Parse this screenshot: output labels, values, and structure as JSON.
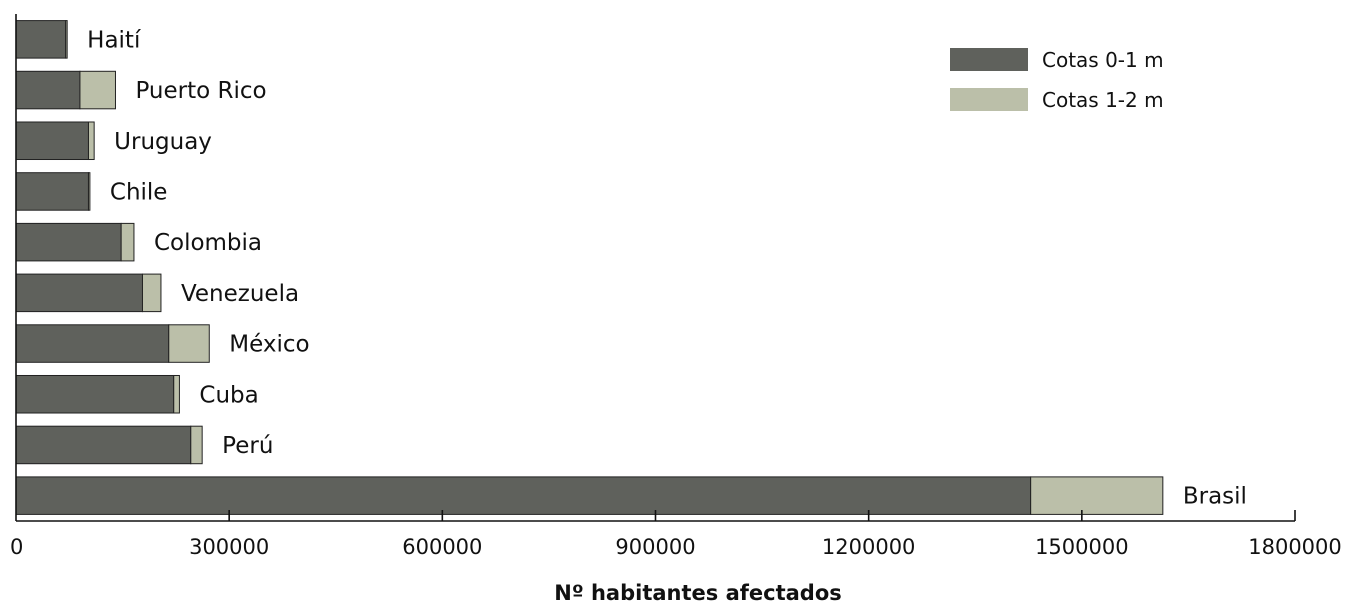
{
  "chart_data": {
    "type": "bar",
    "orientation": "horizontal",
    "stacked": true,
    "categories": [
      "Haití",
      "Puerto Rico",
      "Uruguay",
      "Chile",
      "Colombia",
      "Venezuela",
      "México",
      "Cuba",
      "Perú",
      "Brasil"
    ],
    "series": [
      {
        "name": "Cotas 0-1 m",
        "color": "#5f615c",
        "values": [
          70000,
          90000,
          102000,
          102000,
          148000,
          178000,
          215000,
          222000,
          246000,
          1428000
        ]
      },
      {
        "name": "Cotas 1-2 m",
        "color": "#bbbfa9",
        "values": [
          2000,
          50000,
          8000,
          2000,
          18000,
          26000,
          57000,
          8000,
          16000,
          186000
        ]
      }
    ],
    "x_ticks": [
      "0",
      "300000",
      "600000",
      "900000",
      "1200000",
      "1500000",
      "1800000"
    ],
    "xlim": [
      0,
      1800000
    ],
    "xlabel": "Nº habitantes afectados",
    "legend_position": "top-right",
    "grid": false
  }
}
